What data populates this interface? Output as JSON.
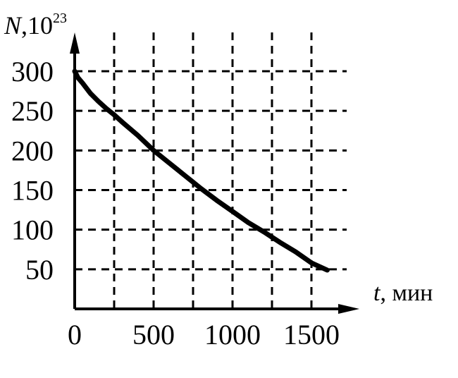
{
  "chart_data": {
    "type": "line",
    "title": "",
    "ylabel": {
      "symbol": "N",
      "unit_prefix": ",10",
      "unit_exponent": "23"
    },
    "xlabel": {
      "symbol": "t",
      "unit": ", мин"
    },
    "xlim": [
      0,
      1650
    ],
    "ylim": [
      0,
      300
    ],
    "grid": true,
    "grid_style": "dashed",
    "x_ticks": [
      0,
      500,
      1000,
      1500
    ],
    "x_tick_labels": [
      "0",
      "500",
      "1000",
      "1500"
    ],
    "y_ticks": [
      50,
      100,
      150,
      200,
      250,
      300
    ],
    "y_tick_labels": [
      "50",
      "100",
      "150",
      "200",
      "250",
      "300"
    ],
    "x_grid_lines": [
      250,
      500,
      750,
      1000,
      1250,
      1500
    ],
    "series": [
      {
        "color": "#000000",
        "x": [
          0,
          20,
          50,
          100,
          150,
          200,
          250,
          300,
          400,
          500,
          600,
          700,
          800,
          900,
          1000,
          1100,
          1200,
          1300,
          1400,
          1500,
          1600
        ],
        "y": [
          300,
          292,
          285,
          272,
          262,
          253,
          245,
          236,
          219,
          200,
          184,
          168,
          152,
          137,
          123,
          109,
          97,
          84,
          72,
          58,
          49
        ]
      }
    ]
  }
}
